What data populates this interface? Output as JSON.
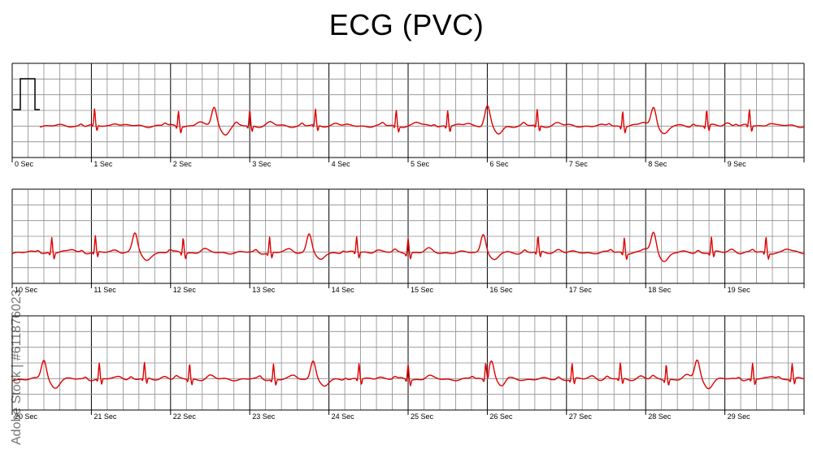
{
  "title": "ECG (PVC)",
  "watermark": "Adobe Stock | #611876023",
  "colors": {
    "trace": "#e00000",
    "grid_minor": "#8c8c8c",
    "grid_major": "#000000",
    "calibration": "#000000"
  },
  "chart_data": {
    "type": "line",
    "title": "ECG (PVC)",
    "strips": [
      {
        "seconds": [
          0,
          1,
          2,
          3,
          4,
          5,
          6,
          7,
          8,
          9
        ],
        "labels": [
          "0 Sec",
          "1 Sec",
          "2 Sec",
          "3 Sec",
          "4 Sec",
          "5 Sec",
          "6 Sec",
          "7 Sec",
          "8 Sec",
          "9 Sec"
        ],
        "normal_beats_sec": [
          1.04,
          2.1,
          3.0,
          3.83,
          4.85,
          5.5,
          6.63,
          7.71,
          8.77,
          9.31
        ],
        "pvc_beats_sec": [
          2.55,
          6.0,
          8.1
        ]
      },
      {
        "seconds": [
          10,
          11,
          12,
          13,
          14,
          15,
          16,
          17,
          18,
          19
        ],
        "labels": [
          "10 Sec",
          "11 Sec",
          "12 Sec",
          "13 Sec",
          "14 Sec",
          "15 Sec",
          "16 Sec",
          "17 Sec",
          "18 Sec",
          "19 Sec"
        ],
        "normal_beats_sec": [
          10.5,
          11.05,
          12.16,
          13.25,
          14.35,
          15.0,
          16.64,
          17.73,
          18.83,
          19.52
        ],
        "pvc_beats_sec": [
          11.55,
          13.75,
          15.95,
          18.1
        ]
      },
      {
        "seconds": [
          20,
          21,
          22,
          23,
          24,
          25,
          26,
          27,
          28,
          29
        ],
        "labels": [
          "20 Sec",
          "21 Sec",
          "22 Sec",
          "23 Sec",
          "24 Sec",
          "25 Sec",
          "26 Sec",
          "27 Sec",
          "28 Sec",
          "29 Sec"
        ],
        "normal_beats_sec": [
          21.1,
          21.67,
          22.24,
          23.3,
          24.38,
          25.0,
          25.98,
          27.07,
          27.68,
          28.26,
          29.35,
          29.85
        ],
        "pvc_beats_sec": [
          20.4,
          23.8,
          26.05,
          28.65
        ]
      }
    ],
    "calibration_pulse": true,
    "grid": true
  }
}
